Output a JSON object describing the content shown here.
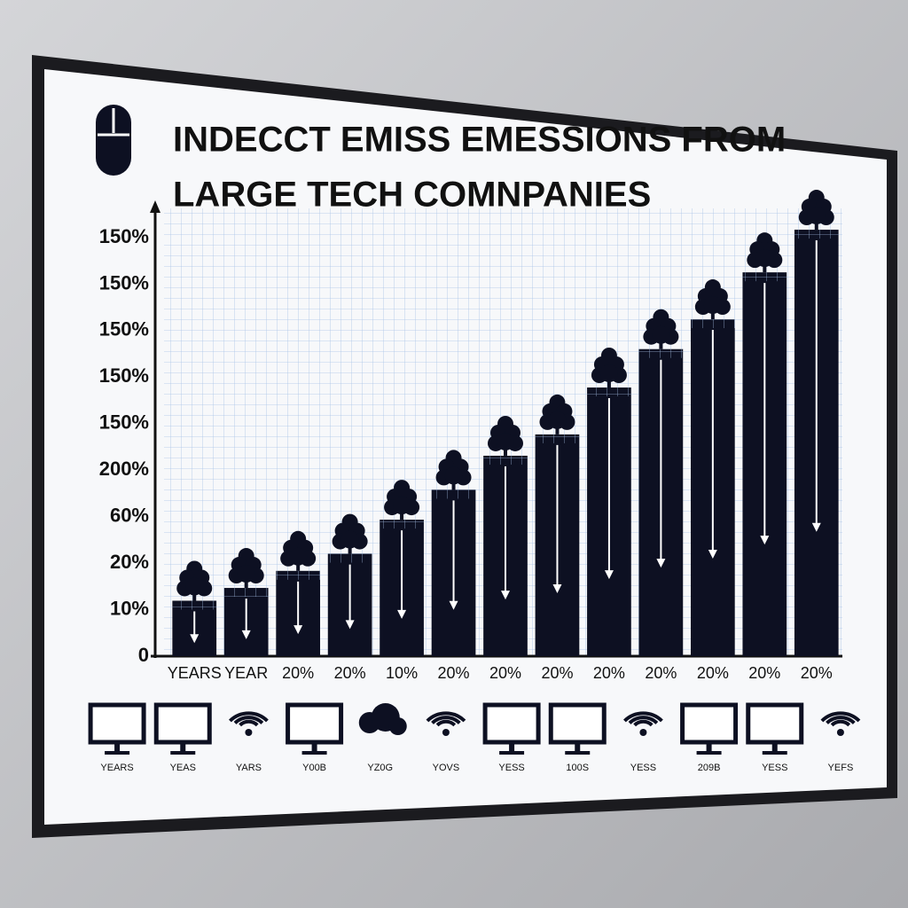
{
  "title_lines": [
    "INDECCT EMISS EMESSIONS FROM",
    "LARGE TECH COMNPANIES"
  ],
  "y_axis_labels": [
    "150%",
    "150%",
    "150%",
    "150%",
    "150%",
    "200%",
    "60%",
    "20%",
    "10%",
    "0"
  ],
  "chart_data": {
    "type": "bar",
    "categories": [
      "YEARS",
      "YEAR",
      "20%",
      "20%",
      "10%",
      "20%",
      "20%",
      "20%",
      "20%",
      "20%",
      "20%",
      "20%",
      "20%"
    ],
    "values": [
      13,
      16,
      20,
      24,
      32,
      39,
      47,
      52,
      63,
      72,
      79,
      90,
      100
    ],
    "color": "#0d1022",
    "ylim": [
      0,
      105
    ],
    "grid": true
  },
  "icon_captions": [
    "YEARS",
    "YEAS",
    "YARS",
    "Y00B",
    "YZ0G",
    "YOVS",
    "YESS",
    "100S",
    "YESS",
    "209B",
    "YESS",
    "YEFS"
  ]
}
